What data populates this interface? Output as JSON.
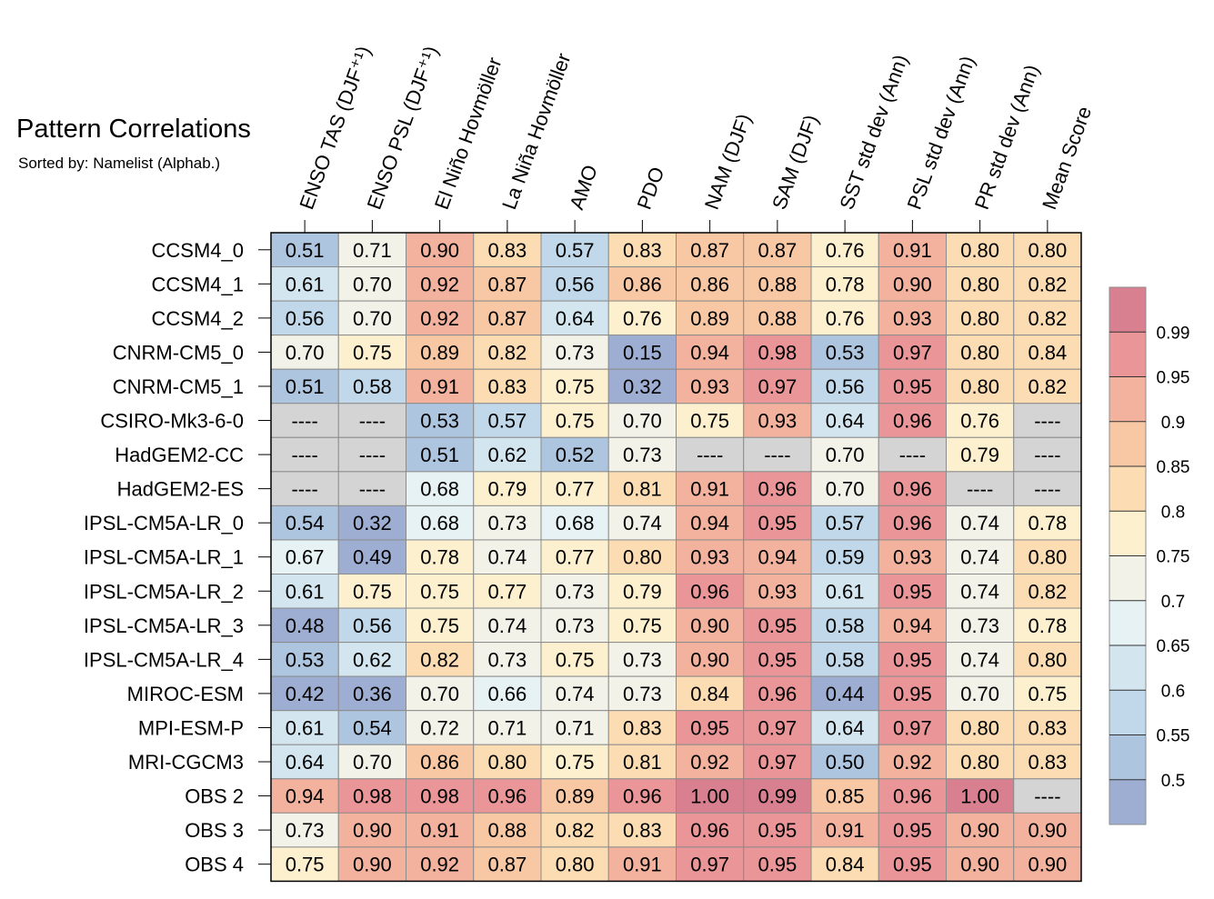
{
  "header": {
    "title": "Pattern Correlations",
    "subtitle": "Sorted by: Namelist (Alphab.)"
  },
  "chart_data": {
    "type": "heatmap",
    "title": "Pattern Correlations",
    "subtitle": "Sorted by: Namelist (Alphab.)",
    "columns": [
      "ENSO TAS (DJF⁺¹)",
      "ENSO PSL (DJF⁺¹)",
      "El Niño Hovmöller",
      "La Niña Hovmöller",
      "AMO",
      "PDO",
      "NAM (DJF)",
      "SAM (DJF)",
      "SST std dev (Ann)",
      "PSL std dev (Ann)",
      "PR std dev (Ann)",
      "Mean Score"
    ],
    "rows": [
      "CCSM4_0",
      "CCSM4_1",
      "CCSM4_2",
      "CNRM-CM5_0",
      "CNRM-CM5_1",
      "CSIRO-Mk3-6-0",
      "HadGEM2-CC",
      "HadGEM2-ES",
      "IPSL-CM5A-LR_0",
      "IPSL-CM5A-LR_1",
      "IPSL-CM5A-LR_2",
      "IPSL-CM5A-LR_3",
      "IPSL-CM5A-LR_4",
      "MIROC-ESM",
      "MPI-ESM-P",
      "MRI-CGCM3",
      "OBS 2",
      "OBS 3",
      "OBS 4"
    ],
    "values": [
      [
        "0.51",
        "0.71",
        "0.90",
        "0.83",
        "0.57",
        "0.83",
        "0.87",
        "0.87",
        "0.76",
        "0.91",
        "0.80",
        "0.80"
      ],
      [
        "0.61",
        "0.70",
        "0.92",
        "0.87",
        "0.56",
        "0.86",
        "0.86",
        "0.88",
        "0.78",
        "0.90",
        "0.80",
        "0.82"
      ],
      [
        "0.56",
        "0.70",
        "0.92",
        "0.87",
        "0.64",
        "0.76",
        "0.89",
        "0.88",
        "0.76",
        "0.93",
        "0.80",
        "0.82"
      ],
      [
        "0.70",
        "0.75",
        "0.89",
        "0.82",
        "0.73",
        "0.15",
        "0.94",
        "0.98",
        "0.53",
        "0.97",
        "0.80",
        "0.84"
      ],
      [
        "0.51",
        "0.58",
        "0.91",
        "0.83",
        "0.75",
        "0.32",
        "0.93",
        "0.97",
        "0.56",
        "0.95",
        "0.80",
        "0.82"
      ],
      [
        "----",
        "----",
        "0.53",
        "0.57",
        "0.75",
        "0.70",
        "0.75",
        "0.93",
        "0.64",
        "0.96",
        "0.76",
        "----"
      ],
      [
        "----",
        "----",
        "0.51",
        "0.62",
        "0.52",
        "0.73",
        "----",
        "----",
        "0.70",
        "----",
        "0.79",
        "----"
      ],
      [
        "----",
        "----",
        "0.68",
        "0.79",
        "0.77",
        "0.81",
        "0.91",
        "0.96",
        "0.70",
        "0.96",
        "----",
        "----"
      ],
      [
        "0.54",
        "0.32",
        "0.68",
        "0.73",
        "0.68",
        "0.74",
        "0.94",
        "0.95",
        "0.57",
        "0.96",
        "0.74",
        "0.78"
      ],
      [
        "0.67",
        "0.49",
        "0.78",
        "0.74",
        "0.77",
        "0.80",
        "0.93",
        "0.94",
        "0.59",
        "0.93",
        "0.74",
        "0.80"
      ],
      [
        "0.61",
        "0.75",
        "0.75",
        "0.77",
        "0.73",
        "0.79",
        "0.96",
        "0.93",
        "0.61",
        "0.95",
        "0.74",
        "0.82"
      ],
      [
        "0.48",
        "0.56",
        "0.75",
        "0.74",
        "0.73",
        "0.75",
        "0.90",
        "0.95",
        "0.58",
        "0.94",
        "0.73",
        "0.78"
      ],
      [
        "0.53",
        "0.62",
        "0.82",
        "0.73",
        "0.75",
        "0.73",
        "0.90",
        "0.95",
        "0.58",
        "0.95",
        "0.74",
        "0.80"
      ],
      [
        "0.42",
        "0.36",
        "0.70",
        "0.66",
        "0.74",
        "0.73",
        "0.84",
        "0.96",
        "0.44",
        "0.95",
        "0.70",
        "0.75"
      ],
      [
        "0.61",
        "0.54",
        "0.72",
        "0.71",
        "0.71",
        "0.83",
        "0.95",
        "0.97",
        "0.64",
        "0.97",
        "0.80",
        "0.83"
      ],
      [
        "0.64",
        "0.70",
        "0.86",
        "0.80",
        "0.75",
        "0.81",
        "0.92",
        "0.97",
        "0.50",
        "0.92",
        "0.80",
        "0.83"
      ],
      [
        "0.94",
        "0.98",
        "0.98",
        "0.96",
        "0.89",
        "0.96",
        "1.00",
        "0.99",
        "0.85",
        "0.96",
        "1.00",
        "----"
      ],
      [
        "0.73",
        "0.90",
        "0.91",
        "0.88",
        "0.82",
        "0.83",
        "0.96",
        "0.95",
        "0.91",
        "0.95",
        "0.90",
        "0.90"
      ],
      [
        "0.75",
        "0.90",
        "0.92",
        "0.87",
        "0.80",
        "0.91",
        "0.97",
        "0.95",
        "0.84",
        "0.95",
        "0.90",
        "0.90"
      ]
    ],
    "missing_symbol": "----",
    "missing_color": "#d4d4d4",
    "colorbar": {
      "labels": [
        "0.99",
        "0.95",
        "0.9",
        "0.85",
        "0.8",
        "0.75",
        "0.7",
        "0.65",
        "0.6",
        "0.55",
        "0.5"
      ],
      "thresholds": [
        0.5,
        0.55,
        0.6,
        0.65,
        0.7,
        0.75,
        0.8,
        0.85,
        0.9,
        0.95,
        0.99
      ],
      "colors": [
        "#9eaed3",
        "#aec5e0",
        "#c0d8e9",
        "#d3e6f0",
        "#e6f2f4",
        "#f2f2e9",
        "#fdf0cf",
        "#fbdcb3",
        "#f8c8a5",
        "#f3b29d",
        "#ea9597",
        "#d8808f"
      ]
    }
  }
}
